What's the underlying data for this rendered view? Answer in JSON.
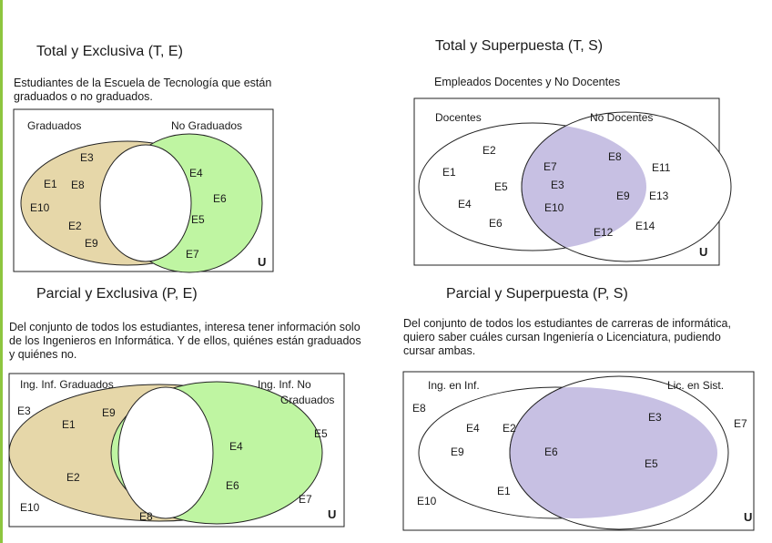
{
  "colors": {
    "grad": "#e6d7a9",
    "nograd": "#bff5a2",
    "overlap": "#c7c0e3",
    "accent": "#8dc63f"
  },
  "universe_label": "U",
  "diagrams": [
    {
      "title": "Total y Exclusiva (T, E)",
      "description": "Estudiantes de la Escuela de Tecnología que están graduados o no graduados.",
      "left_set": "Graduados",
      "right_set": "No Graduados",
      "left_elements": [
        "E3",
        "E1",
        "E8",
        "E10",
        "E2",
        "E9"
      ],
      "right_elements": [
        "E4",
        "E6",
        "E5",
        "E7"
      ]
    },
    {
      "title": "Total y Superpuesta (T, S)",
      "description": "Empleados Docentes y No Docentes",
      "left_set": "Docentes",
      "right_set": "No Docentes",
      "left_elements": [
        "E2",
        "E1",
        "E5",
        "E4",
        "E6"
      ],
      "intersection_elements": [
        "E7",
        "E3",
        "E10"
      ],
      "right_elements": [
        "E8",
        "E11",
        "E9",
        "E13",
        "E12",
        "E14"
      ]
    },
    {
      "title": "Parcial y Exclusiva (P, E)",
      "description": "Del conjunto de todos los estudiantes, interesa tener información solo de los Ingenieros en Informática. Y de ellos, quiénes están graduados y quiénes no.",
      "left_set": "Ing. Inf. Graduados",
      "right_set": "Ing. Inf. No Graduados",
      "left_elements": [
        "E9",
        "E1",
        "E2"
      ],
      "right_elements": [
        "E4",
        "E6"
      ],
      "outside_elements": [
        "E3",
        "E5",
        "E7",
        "E10",
        "E8"
      ]
    },
    {
      "title": "Parcial y Superpuesta (P, S)",
      "description": "Del conjunto de todos los estudiantes de carreras de informática, quiero saber cuáles cursan Ingeniería o Licenciatura, pudiendo cursar ambas.",
      "left_set": "Ing. en Inf.",
      "right_set": "Lic. en Sist.",
      "left_elements": [
        "E4",
        "E2",
        "E9",
        "E1"
      ],
      "intersection_elements": [
        "E6"
      ],
      "right_elements": [
        "E3",
        "E5"
      ],
      "outside_elements": [
        "E8",
        "E7",
        "E10"
      ]
    }
  ]
}
